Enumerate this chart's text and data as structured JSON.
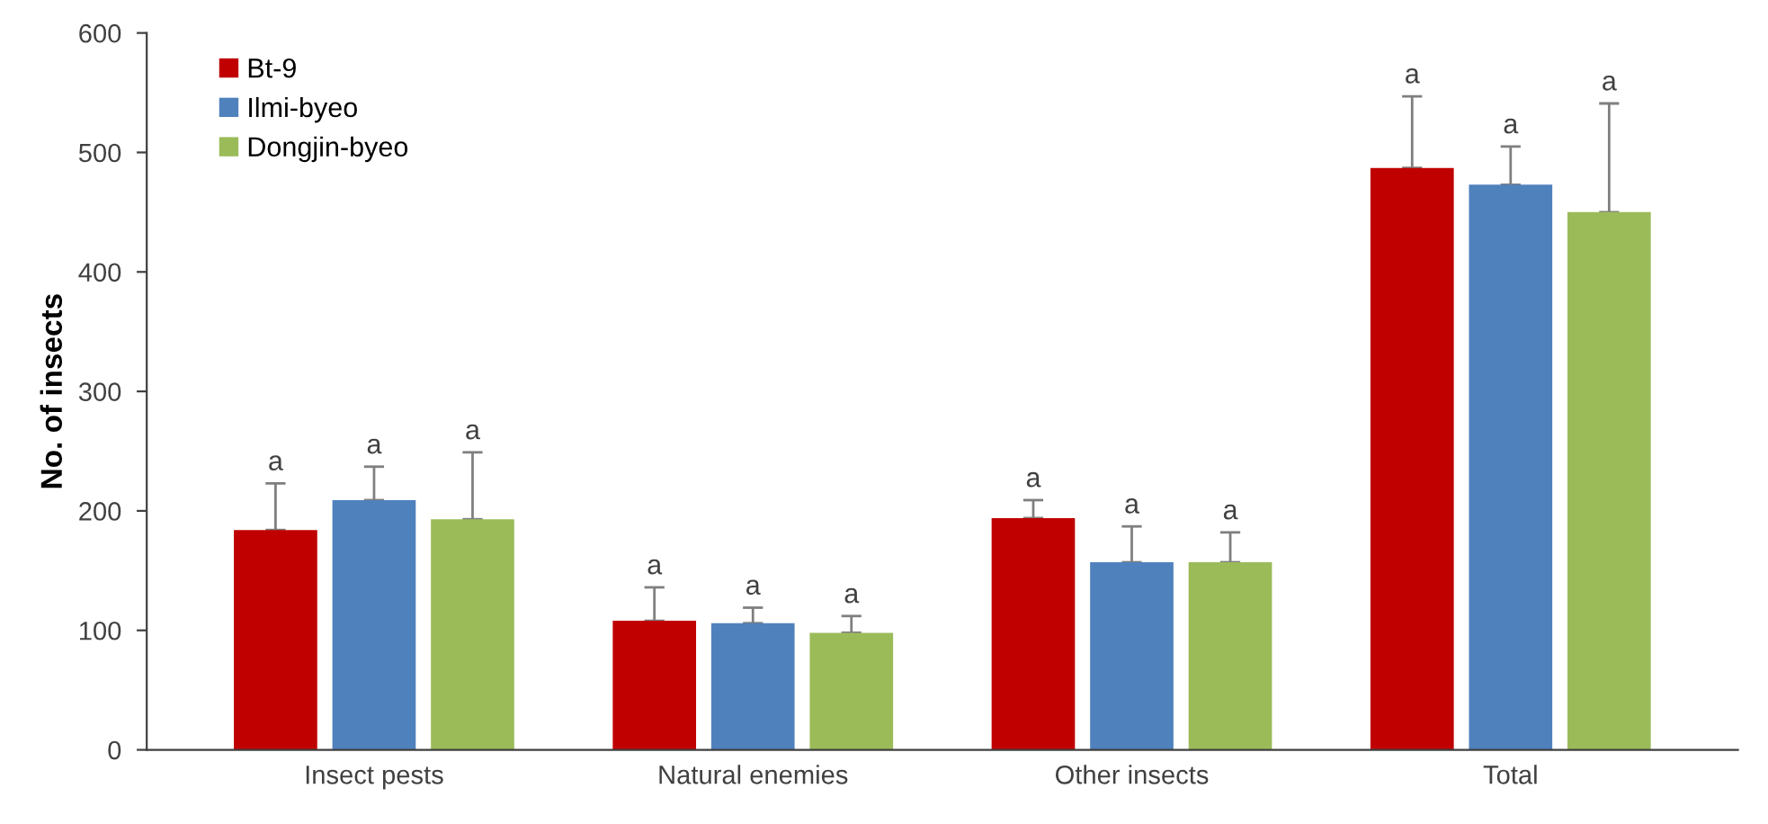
{
  "chart_data": {
    "type": "bar",
    "ylabel": "No. of insects",
    "categories": [
      "Insect pests",
      "Natural enemies",
      "Other insects",
      "Total"
    ],
    "series": [
      {
        "name": "Bt-9",
        "color": "#c00000",
        "values": [
          184,
          108,
          194,
          487
        ],
        "errors": [
          [
            184,
            223
          ],
          [
            108,
            136
          ],
          [
            194,
            209
          ],
          [
            487,
            547
          ]
        ]
      },
      {
        "name": "Ilmi-byeo",
        "color": "#4f81bd",
        "values": [
          209,
          106,
          157,
          473
        ],
        "errors": [
          [
            209,
            237
          ],
          [
            106,
            119
          ],
          [
            157,
            187
          ],
          [
            473,
            505
          ]
        ]
      },
      {
        "name": "Dongjin-byeo",
        "color": "#9bbb59",
        "values": [
          193,
          98,
          157,
          450
        ],
        "errors": [
          [
            193,
            249
          ],
          [
            98,
            112
          ],
          [
            157,
            182
          ],
          [
            450,
            541
          ]
        ]
      }
    ],
    "annotations": [
      "a",
      "a",
      "a",
      "a",
      "a",
      "a",
      "a",
      "a",
      "a",
      "a",
      "a",
      "a"
    ],
    "ylim": [
      0,
      600
    ],
    "yticks": [
      0,
      100,
      200,
      300,
      400,
      500,
      600
    ],
    "grid": false,
    "legend": "top left"
  }
}
